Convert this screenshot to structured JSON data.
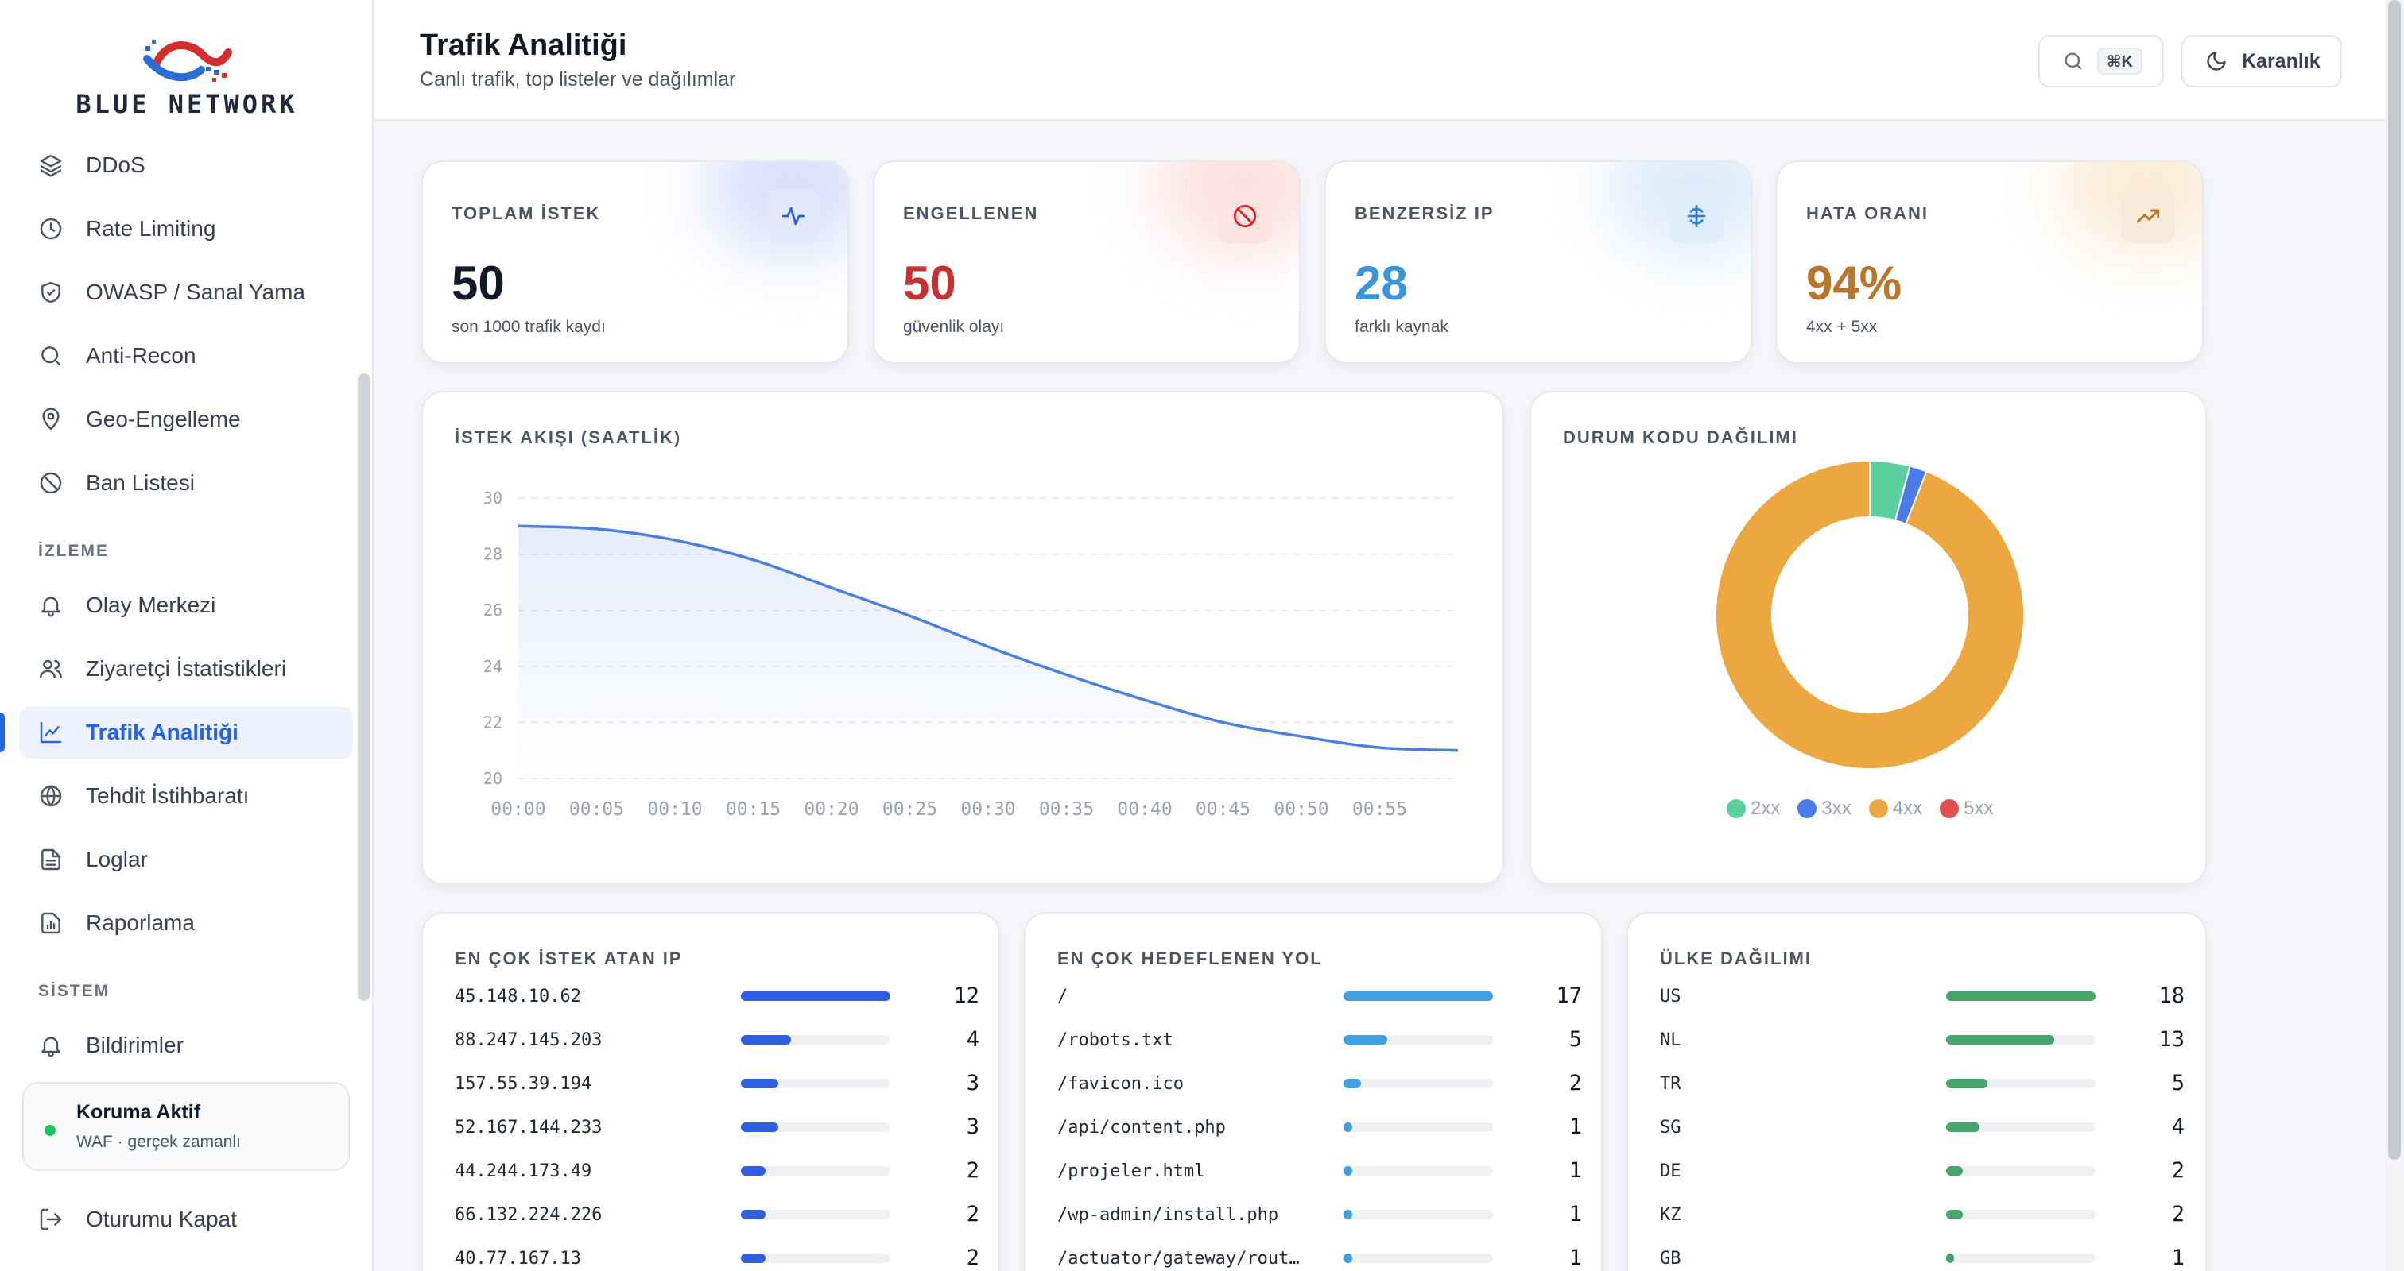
{
  "brand": {
    "name": "BLUE NETWORK"
  },
  "sidebar": {
    "items_top": [
      {
        "label": "DDoS",
        "icon": "layers-icon"
      },
      {
        "label": "Rate Limiting",
        "icon": "clock-icon"
      },
      {
        "label": "OWASP / Sanal Yama",
        "icon": "shield-icon"
      },
      {
        "label": "Anti-Recon",
        "icon": "search-icon"
      },
      {
        "label": "Geo-Engelleme",
        "icon": "map-pin-icon"
      },
      {
        "label": "Ban Listesi",
        "icon": "ban-icon"
      }
    ],
    "section_monitoring": "İZLEME",
    "items_monitoring": [
      {
        "label": "Olay Merkezi",
        "icon": "bell-icon"
      },
      {
        "label": "Ziyaretçi İstatistikleri",
        "icon": "users-icon"
      },
      {
        "label": "Trafik Analitiği",
        "icon": "chart-line-icon",
        "active": true
      },
      {
        "label": "Tehdit İstihbaratı",
        "icon": "globe-icon"
      },
      {
        "label": "Loglar",
        "icon": "file-icon"
      },
      {
        "label": "Raporlama",
        "icon": "report-icon"
      }
    ],
    "section_system": "SİSTEM",
    "items_system": [
      {
        "label": "Bildirimler",
        "icon": "bell-icon"
      }
    ],
    "status": {
      "title": "Koruma Aktif",
      "subtitle": "WAF · gerçek zamanlı"
    },
    "logout_label": "Oturumu Kapat"
  },
  "header": {
    "title": "Trafik Analitiği",
    "subtitle": "Canlı trafik, top listeler ve dağılımlar",
    "search_shortcut": "⌘K",
    "theme_label": "Karanlık"
  },
  "stats": [
    {
      "label": "TOPLAM İSTEK",
      "value": "50",
      "sub": "son 1000 trafik kaydı",
      "color": "#111827",
      "icon": "activity-icon",
      "icon_bg": "#e3e9fb",
      "icon_color": "#2563eb",
      "glow": "#93a8f5"
    },
    {
      "label": "ENGELLENEN",
      "value": "50",
      "sub": "güvenlik olayı",
      "color": "#c53030",
      "icon": "ban-icon",
      "icon_bg": "#fde2e2",
      "icon_color": "#dc2626",
      "glow": "#f7a8a8"
    },
    {
      "label": "BENZERSİZ IP",
      "value": "28",
      "sub": "farklı kaynak",
      "color": "#3b95dc",
      "icon": "network-icon",
      "icon_bg": "#e0eefb",
      "icon_color": "#2b82d0",
      "glow": "#9cc8f0"
    },
    {
      "label": "HATA ORANI",
      "value": "94%",
      "sub": "4xx + 5xx",
      "color": "#b7762a",
      "icon": "trending-up-icon",
      "icon_bg": "#f6ead8",
      "icon_color": "#b7762a",
      "glow": "#f2c98a"
    }
  ],
  "flow_chart": {
    "title": "İSTEK AKIŞI (SAATLİK)",
    "chart_data": {
      "type": "area",
      "x": [
        "00:00",
        "00:05",
        "00:10",
        "00:15",
        "00:20",
        "00:25",
        "00:30",
        "00:35",
        "00:40",
        "00:45",
        "00:50",
        "00:55",
        "01:00"
      ],
      "x_tick_labels": [
        "00:00",
        "00:05",
        "00:10",
        "00:15",
        "00:20",
        "00:25",
        "00:30",
        "00:35",
        "00:40",
        "00:45",
        "00:50",
        "00:55"
      ],
      "values": [
        29,
        28.9,
        28.5,
        27.8,
        26.8,
        25.8,
        24.7,
        23.7,
        22.8,
        22.0,
        21.5,
        21.1,
        21.0
      ],
      "ylim": [
        20,
        30
      ],
      "y_ticks": [
        20,
        22,
        24,
        26,
        28,
        30
      ],
      "grid": true,
      "color": "#4a7fe0"
    }
  },
  "status_chart": {
    "title": "DURUM KODU DAĞILIMI",
    "chart_data": {
      "type": "pie",
      "donut": true,
      "labels": [
        "2xx",
        "3xx",
        "4xx",
        "5xx"
      ],
      "values": [
        2.1,
        0.9,
        47,
        0
      ],
      "colors": [
        "#5ccf9f",
        "#4a7be8",
        "#eca740",
        "#e05252"
      ],
      "legend": "bottom"
    }
  },
  "top_ips": {
    "title": "EN ÇOK İSTEK ATAN IP",
    "color": "#2f5fe0",
    "max": 12,
    "rows": [
      {
        "key": "45.148.10.62",
        "count": 12
      },
      {
        "key": "88.247.145.203",
        "count": 4
      },
      {
        "key": "157.55.39.194",
        "count": 3
      },
      {
        "key": "52.167.144.233",
        "count": 3
      },
      {
        "key": "44.244.173.49",
        "count": 2
      },
      {
        "key": "66.132.224.226",
        "count": 2
      },
      {
        "key": "40.77.167.13",
        "count": 2
      }
    ]
  },
  "top_paths": {
    "title": "EN ÇOK HEDEFLENEN YOL",
    "color": "#42a0e2",
    "max": 17,
    "rows": [
      {
        "key": "/",
        "count": 17
      },
      {
        "key": "/robots.txt",
        "count": 5
      },
      {
        "key": "/favicon.ico",
        "count": 2
      },
      {
        "key": "/api/content.php",
        "count": 1
      },
      {
        "key": "/projeler.html",
        "count": 1
      },
      {
        "key": "/wp-admin/install.php",
        "count": 1
      },
      {
        "key": "/actuator/gateway/rout…",
        "count": 1
      }
    ]
  },
  "countries": {
    "title": "ÜLKE DAĞILIMI",
    "color": "#46a56b",
    "max": 18,
    "rows": [
      {
        "key": "US",
        "count": 18
      },
      {
        "key": "NL",
        "count": 13
      },
      {
        "key": "TR",
        "count": 5
      },
      {
        "key": "SG",
        "count": 4
      },
      {
        "key": "DE",
        "count": 2
      },
      {
        "key": "KZ",
        "count": 2
      },
      {
        "key": "GB",
        "count": 1
      }
    ]
  }
}
